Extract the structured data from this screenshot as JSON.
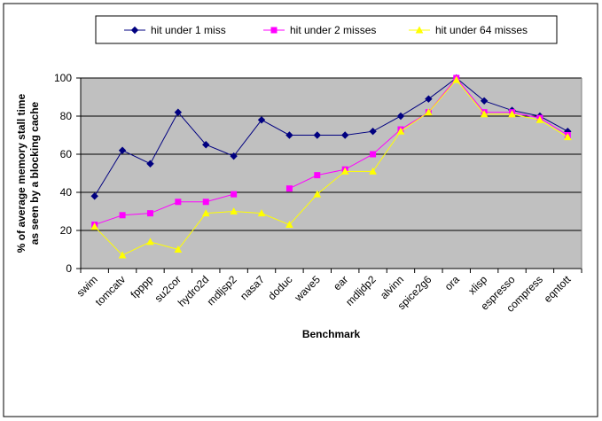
{
  "chart_data": {
    "type": "line",
    "title": "",
    "xlabel": "Benchmark",
    "ylabel_lines": [
      "% of average memory stall time",
      "as seen by a blocking cache"
    ],
    "ylim": [
      0,
      100
    ],
    "yticks": [
      0,
      20,
      40,
      60,
      80,
      100
    ],
    "grid": true,
    "legend_position": "top",
    "plot_background": "#c0c0c0",
    "categories": [
      "swim",
      "tomcatv",
      "fpppp",
      "su2cor",
      "hydro2d",
      "mdljsp2",
      "nasa7",
      "doduc",
      "wave5",
      "ear",
      "mdljdp2",
      "alvinn",
      "spice2g6",
      "ora",
      "xlisp",
      "espresso",
      "compress",
      "eqntott"
    ],
    "series": [
      {
        "name": "hit under 1 miss",
        "color": "#000080",
        "marker": "diamond",
        "values": [
          38,
          62,
          55,
          82,
          65,
          59,
          78,
          70,
          70,
          70,
          72,
          80,
          89,
          100,
          88,
          83,
          80,
          72
        ]
      },
      {
        "name": "hit under 2 misses",
        "color": "#ff00ff",
        "marker": "square",
        "values": [
          23,
          28,
          29,
          35,
          35,
          39,
          null,
          42,
          49,
          52,
          60,
          73,
          82,
          100,
          82,
          82,
          79,
          70
        ]
      },
      {
        "name": "hit under 64 misses",
        "color": "#ffff00",
        "marker": "triangle",
        "values": [
          22,
          7,
          14,
          10,
          29,
          30,
          29,
          23,
          39,
          51,
          51,
          72,
          82,
          99,
          81,
          81,
          78,
          69
        ]
      }
    ]
  }
}
